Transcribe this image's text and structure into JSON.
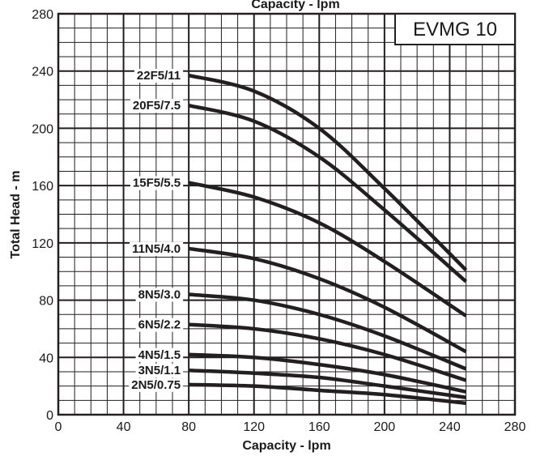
{
  "chart_data": {
    "type": "line",
    "title": "Capacity - lpm",
    "model_label": "EVMG 10",
    "xlabel": "Capacity - lpm",
    "ylabel": "Total Head - m",
    "xlim": [
      0,
      280
    ],
    "ylim": [
      0,
      280
    ],
    "x_ticks": [
      "0",
      "40",
      "80",
      "120",
      "160",
      "200",
      "240",
      "280"
    ],
    "y_ticks": [
      "0",
      "40",
      "80",
      "120",
      "160",
      "200",
      "240",
      "280"
    ],
    "grid": true,
    "colors": {
      "curve": "#231f20",
      "grid": "#231f20",
      "background": "#ffffff"
    },
    "series": [
      {
        "name": "22F5/11",
        "points": [
          [
            80,
            237
          ],
          [
            120,
            226
          ],
          [
            160,
            200
          ],
          [
            200,
            158
          ],
          [
            250,
            101
          ]
        ]
      },
      {
        "name": "20F5/7.5",
        "points": [
          [
            80,
            216
          ],
          [
            120,
            205
          ],
          [
            160,
            180
          ],
          [
            200,
            143
          ],
          [
            250,
            93
          ]
        ]
      },
      {
        "name": "15F5/5.5",
        "points": [
          [
            80,
            162
          ],
          [
            120,
            152
          ],
          [
            160,
            134
          ],
          [
            200,
            107
          ],
          [
            250,
            69
          ]
        ]
      },
      {
        "name": "11N5/4.0",
        "points": [
          [
            80,
            116
          ],
          [
            120,
            109
          ],
          [
            160,
            95
          ],
          [
            200,
            75
          ],
          [
            250,
            44
          ]
        ]
      },
      {
        "name": "8N5/3.0",
        "points": [
          [
            80,
            84
          ],
          [
            120,
            80
          ],
          [
            160,
            70
          ],
          [
            200,
            55
          ],
          [
            250,
            32
          ]
        ]
      },
      {
        "name": "6N5/2.2",
        "points": [
          [
            80,
            63
          ],
          [
            120,
            60
          ],
          [
            160,
            53
          ],
          [
            200,
            42
          ],
          [
            250,
            24
          ]
        ]
      },
      {
        "name": "4N5/1.5",
        "points": [
          [
            80,
            42
          ],
          [
            120,
            40
          ],
          [
            160,
            35
          ],
          [
            200,
            28
          ],
          [
            250,
            16
          ]
        ]
      },
      {
        "name": "3N5/1.1",
        "points": [
          [
            80,
            31
          ],
          [
            120,
            29
          ],
          [
            160,
            26
          ],
          [
            200,
            20
          ],
          [
            250,
            12
          ]
        ]
      },
      {
        "name": "2N5/0.75",
        "points": [
          [
            80,
            21
          ],
          [
            120,
            20
          ],
          [
            160,
            17
          ],
          [
            200,
            14
          ],
          [
            250,
            8
          ]
        ]
      }
    ]
  }
}
